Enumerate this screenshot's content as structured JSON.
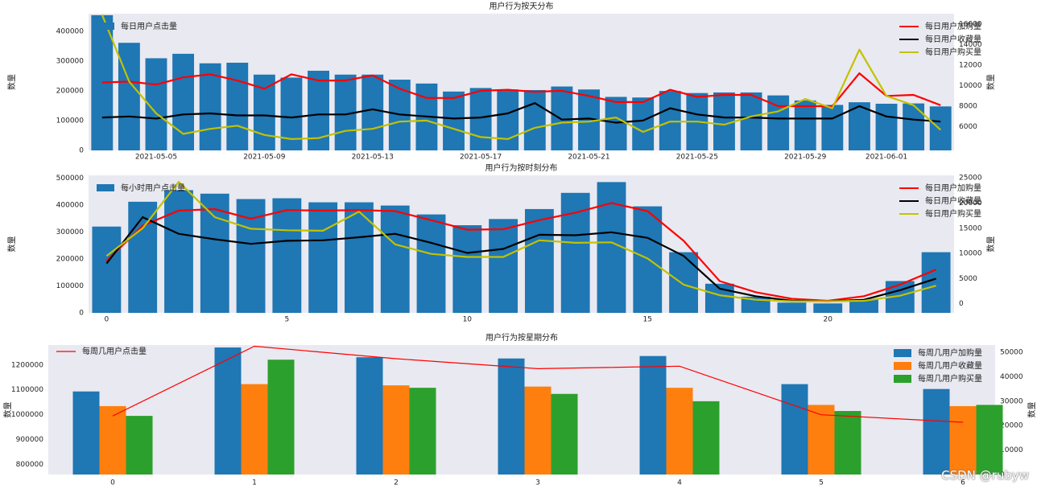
{
  "watermark": "CSDN @rubyw",
  "colors": {
    "blue": "#1f77b4",
    "orange": "#ff7f0e",
    "green": "#2ca02c",
    "red": "#ff0000",
    "black": "#000000",
    "olive": "#c2c200",
    "panel": "#e9e9f1"
  },
  "chart_data": [
    {
      "type": "bar+line",
      "title": "用户行为按天分布",
      "ylabel_left": "数量",
      "ylabel_right": "数量",
      "left_ylim": [
        0,
        460000
      ],
      "left_ticks": [
        0,
        100000,
        200000,
        300000,
        400000
      ],
      "left_tick_labels": [
        "0",
        "100000",
        "200000",
        "300000",
        "400000"
      ],
      "right_ylim": [
        3700,
        17000
      ],
      "right_ticks": [
        6000,
        8000,
        10000,
        12000,
        14000,
        16000
      ],
      "right_tick_labels": [
        "6000",
        "8000",
        "10000",
        "12000",
        "14000",
        "16000"
      ],
      "x_ticks": [
        2,
        6,
        10,
        14,
        18,
        22,
        26,
        29
      ],
      "x_tick_labels": [
        "2021-05-05",
        "2021-05-09",
        "2021-05-13",
        "2021-05-17",
        "2021-05-21",
        "2021-05-25",
        "2021-05-29",
        "2021-06-01"
      ],
      "bar_legend": "每日用户点击量",
      "bar_values": [
        455000,
        362000,
        310000,
        325000,
        293000,
        295000,
        255000,
        245000,
        268000,
        255000,
        255000,
        238000,
        225000,
        198000,
        210000,
        205000,
        203000,
        215000,
        205000,
        180000,
        178000,
        200000,
        193000,
        195000,
        195000,
        185000,
        168000,
        153000,
        162000,
        157000,
        158000,
        148000
      ],
      "line_legend": [
        "每日用户加购量",
        "每日用户收藏量",
        "每日用户购买量"
      ],
      "series": [
        {
          "name": "每日用户加购量",
          "color": "#ff0000",
          "values": [
            10300,
            10400,
            10100,
            10800,
            11100,
            10500,
            9700,
            11100,
            10500,
            10500,
            11000,
            9700,
            8800,
            8800,
            9500,
            9600,
            9400,
            9500,
            9000,
            8400,
            8400,
            9600,
            8900,
            9100,
            9100,
            8000,
            8000,
            8000,
            11200,
            9000,
            9100,
            8100
          ]
        },
        {
          "name": "每日用户收藏量",
          "color": "#000000",
          "values": [
            6900,
            7000,
            6800,
            7200,
            7300,
            7100,
            7100,
            6900,
            7200,
            7200,
            7700,
            7200,
            7000,
            6800,
            6900,
            7300,
            8300,
            6700,
            6800,
            6400,
            6600,
            7800,
            7200,
            6900,
            6900,
            6800,
            6800,
            6800,
            8000,
            7000,
            6700,
            6500
          ]
        },
        {
          "name": "每日用户购买量",
          "color": "#c2c200",
          "values": [
            16900,
            10400,
            7300,
            5300,
            5800,
            6100,
            5200,
            4800,
            4900,
            5600,
            5800,
            6500,
            6600,
            5800,
            5000,
            4800,
            5900,
            6400,
            6500,
            6900,
            5500,
            6500,
            6500,
            6200,
            7000,
            7500,
            8700,
            7800,
            13500,
            9000,
            8100,
            5700
          ]
        }
      ]
    },
    {
      "type": "bar+line",
      "title": "用户行为按时刻分布",
      "ylabel_left": "数量",
      "ylabel_right": "数量",
      "left_ylim": [
        0,
        510000
      ],
      "left_ticks": [
        0,
        100000,
        200000,
        300000,
        400000,
        500000
      ],
      "left_tick_labels": [
        "0",
        "100000",
        "200000",
        "300000",
        "400000",
        "500000"
      ],
      "right_ylim": [
        -1800,
        25500
      ],
      "right_ticks": [
        0,
        5000,
        10000,
        15000,
        20000,
        25000
      ],
      "right_tick_labels": [
        "0",
        "5000",
        "10000",
        "15000",
        "20000",
        "25000"
      ],
      "x_ticks": [
        0,
        5,
        10,
        15,
        20
      ],
      "x_tick_labels": [
        "0",
        "5",
        "10",
        "15",
        "20"
      ],
      "bar_legend": "每小时用户点击量",
      "bar_values": [
        320000,
        412000,
        455000,
        442000,
        422000,
        425000,
        410000,
        410000,
        398000,
        365000,
        325000,
        348000,
        385000,
        445000,
        485000,
        395000,
        225000,
        108000,
        60000,
        38000,
        35000,
        50000,
        118000,
        225000
      ],
      "line_legend": [
        "每日用户加购量",
        "每日用户收藏量",
        "每日用户购买量"
      ],
      "series": [
        {
          "name": "每日用户加购量",
          "color": "#ff0000",
          "values": [
            8500,
            15500,
            18500,
            18800,
            16900,
            18600,
            18500,
            18600,
            18400,
            16600,
            14700,
            14800,
            16600,
            18100,
            20000,
            18400,
            12500,
            4500,
            2300,
            1000,
            600,
            1500,
            3800,
            6800
          ]
        },
        {
          "name": "每日用户收藏量",
          "color": "#000000",
          "values": [
            8000,
            17200,
            13900,
            12800,
            11900,
            12500,
            12600,
            13200,
            13900,
            12100,
            10100,
            10900,
            13700,
            13600,
            14200,
            13100,
            9500,
            3000,
            1500,
            600,
            500,
            800,
            2700,
            5000
          ]
        },
        {
          "name": "每日用户购买量",
          "color": "#c2c200",
          "values": [
            9500,
            15000,
            24200,
            17200,
            14900,
            14600,
            14500,
            18300,
            11800,
            9900,
            9300,
            9300,
            12600,
            12100,
            12200,
            9000,
            3800,
            1700,
            800,
            500,
            500,
            600,
            1600,
            3600
          ]
        }
      ]
    },
    {
      "type": "grouped_bar+line",
      "title": "用户行为按星期分布",
      "ylabel_left": "数量",
      "ylabel_right": "数量",
      "left_ylim": [
        760000,
        1280000
      ],
      "left_ticks": [
        800000,
        900000,
        1000000,
        1100000,
        1200000
      ],
      "left_tick_labels": [
        "800000",
        "900000",
        "1000000",
        "1100000",
        "1200000"
      ],
      "right_ylim": [
        0,
        53000
      ],
      "right_ticks": [
        0,
        10000,
        20000,
        30000,
        40000,
        50000
      ],
      "right_tick_labels": [
        "0",
        "10000",
        "20000",
        "30000",
        "40000",
        "50000"
      ],
      "categories": [
        "0",
        "1",
        "2",
        "3",
        "4",
        "5",
        "6"
      ],
      "line_legend": "每周几用户点击量",
      "line_color": "#ff0000",
      "line_values": [
        995000,
        1275000,
        1225000,
        1185000,
        1195000,
        1000000,
        970000
      ],
      "bar_legend": [
        "每周几用户加购量",
        "每周几用户收藏量",
        "每周几用户购买量"
      ],
      "series": [
        {
          "name": "每周几用户加购量",
          "color": "#1f77b4",
          "values": [
            34000,
            52000,
            48000,
            47500,
            48500,
            37000,
            35000
          ]
        },
        {
          "name": "每周几用户收藏量",
          "color": "#ff7f0e",
          "values": [
            28000,
            37000,
            36500,
            36000,
            35500,
            28500,
            28000
          ]
        },
        {
          "name": "每周几用户购买量",
          "color": "#2ca02c",
          "values": [
            24000,
            47000,
            35500,
            33000,
            30000,
            26000,
            28500
          ]
        }
      ]
    }
  ]
}
